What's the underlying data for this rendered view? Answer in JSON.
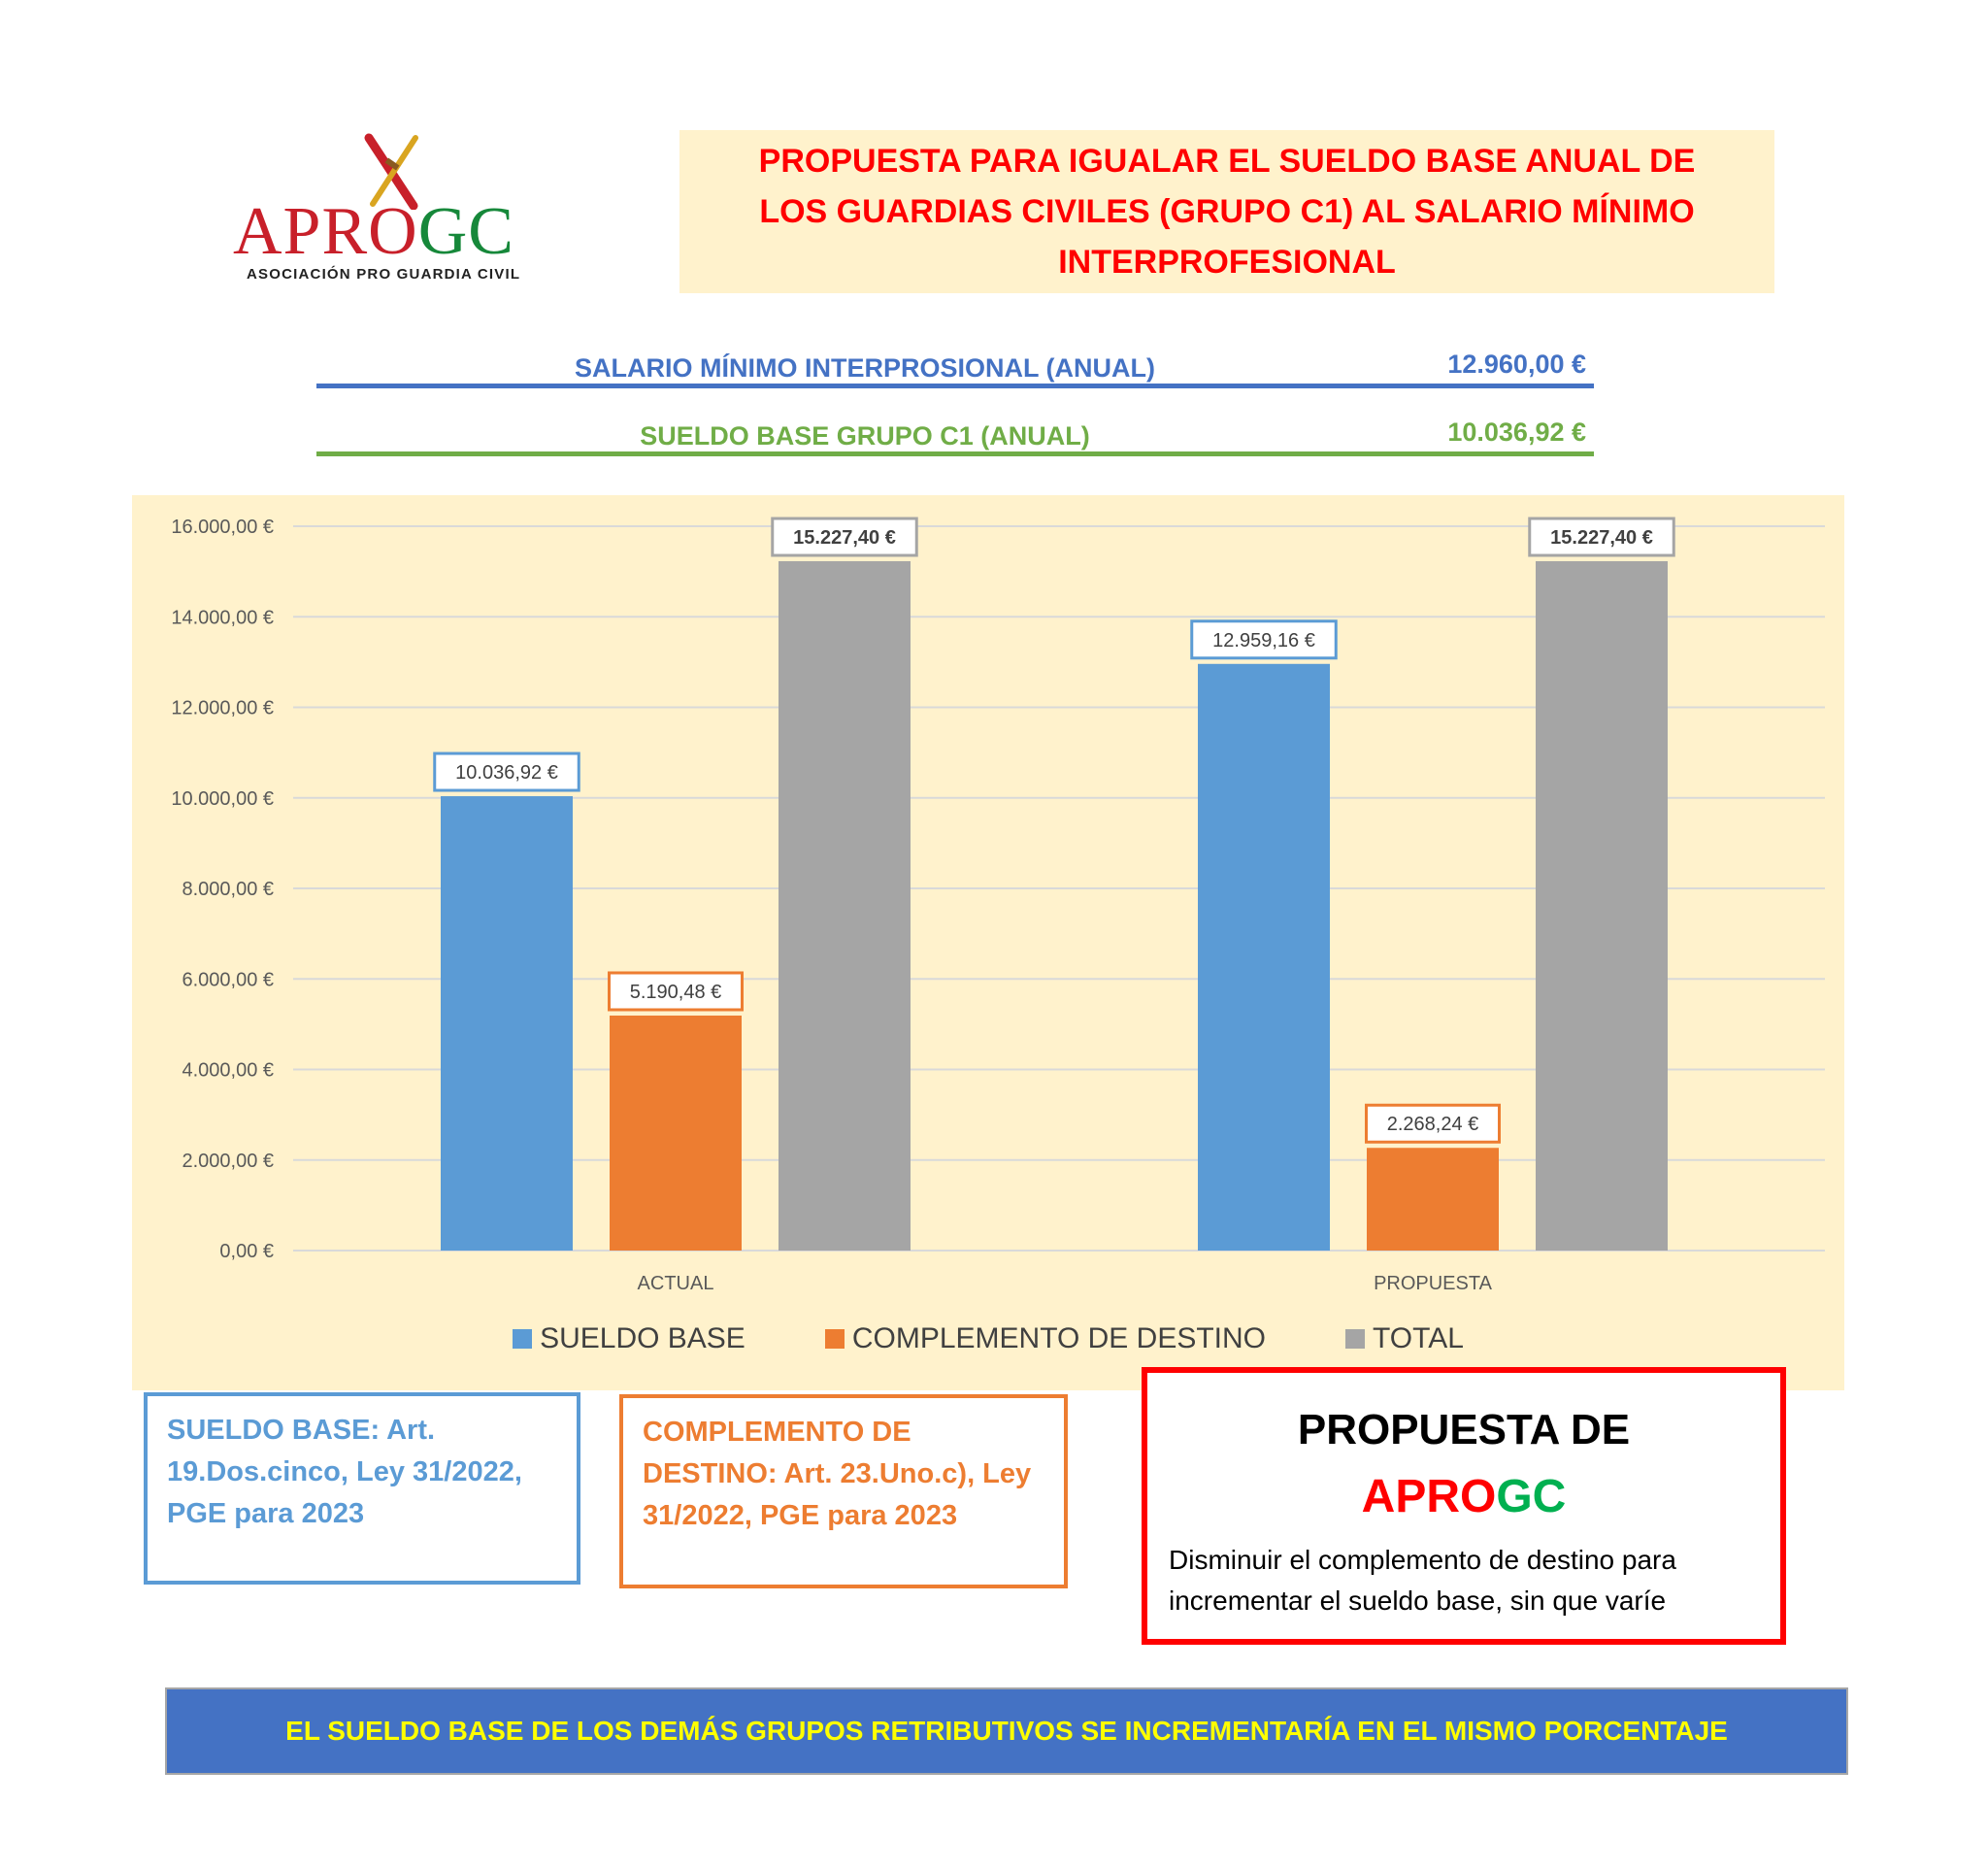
{
  "logo": {
    "word_red": "APRO",
    "word_green": "GC",
    "subtitle": "ASOCIACIÓN PRO GUARDIA CIVIL"
  },
  "title": "PROPUESTA PARA IGUALAR EL SUELDO BASE ANUAL DE LOS GUARDIAS CIVILES (GRUPO C1) AL SALARIO MÍNIMO INTERPROFESIONAL",
  "info": {
    "smi_label": "SALARIO MÍNIMO INTERPROSIONAL (ANUAL)",
    "smi_value": "12.960,00 €",
    "sb_label": "SUELDO BASE GRUPO C1 (ANUAL)",
    "sb_value": "10.036,92 €"
  },
  "chart_data": {
    "type": "bar",
    "categories": [
      "ACTUAL",
      "PROPUESTA"
    ],
    "series": [
      {
        "name": "SUELDO BASE",
        "color": "#5b9bd5",
        "values": [
          10036.92,
          12959.16
        ],
        "labels": [
          "10.036,92 €",
          "12.959,16 €"
        ]
      },
      {
        "name": "COMPLEMENTO DE DESTINO",
        "color": "#ed7d31",
        "values": [
          5190.48,
          2268.24
        ],
        "labels": [
          "5.190,48 €",
          "2.268,24 €"
        ]
      },
      {
        "name": "TOTAL",
        "color": "#a5a5a5",
        "values": [
          15227.4,
          15227.4
        ],
        "labels": [
          "15.227,40 €",
          "15.227,40 €"
        ]
      }
    ],
    "ylim": [
      0,
      16000
    ],
    "yticks": [
      0,
      2000,
      4000,
      6000,
      8000,
      10000,
      12000,
      14000,
      16000
    ],
    "ytick_labels": [
      "0,00 €",
      "2.000,00 €",
      "4.000,00 €",
      "6.000,00 €",
      "8.000,00 €",
      "10.000,00 €",
      "12.000,00 €",
      "14.000,00 €",
      "16.000,00 €"
    ],
    "grid": true,
    "legend": "bottom"
  },
  "notes": {
    "sueldo_base": "SUELDO BASE: Art. 19.Dos.cinco, Ley  31/2022, PGE para 2023",
    "complemento": "COMPLEMENTO DE DESTINO: Art. 23.Uno.c), Ley 31/2022, PGE para 2023"
  },
  "proposal": {
    "title": "PROPUESTA DE",
    "brand_red": "APRO",
    "brand_green": "GC",
    "description": "Disminuir el complemento de destino para incrementar el sueldo base, sin que varíe"
  },
  "banner": "EL SUELDO BASE DE LOS DEMÁS GRUPOS RETRIBUTIVOS SE INCREMENTARÍA EN EL MISMO PORCENTAJE"
}
